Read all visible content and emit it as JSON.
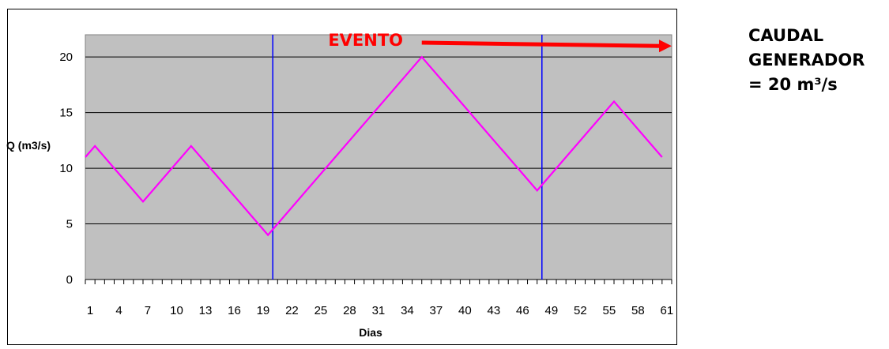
{
  "chart_data": {
    "type": "line",
    "title": "",
    "xlabel": "Dias",
    "ylabel": "Q (m3/s)",
    "xlim": [
      1,
      62
    ],
    "ylim": [
      0,
      22
    ],
    "yticks": [
      0,
      5,
      10,
      15,
      20
    ],
    "xtick_labels": [
      "1",
      "4",
      "7",
      "10",
      "13",
      "16",
      "19",
      "22",
      "25",
      "28",
      "31",
      "34",
      "37",
      "40",
      "43",
      "46",
      "49",
      "52",
      "55",
      "58",
      "61"
    ],
    "plot_background": "#c0c0c0",
    "grid": "horizontal",
    "series": [
      {
        "color": "#ff00ff",
        "x": [
          1,
          2,
          7,
          12,
          20,
          36,
          48,
          56,
          61
        ],
        "y": [
          11,
          12,
          7,
          12,
          4,
          20,
          8,
          16,
          11
        ]
      }
    ],
    "vertical_lines": [
      {
        "x": 20.5,
        "color": "#0000ff"
      },
      {
        "x": 48.5,
        "color": "#0000ff"
      }
    ],
    "annotations": [
      {
        "text": "EVENTO",
        "color": "#ff0000",
        "x": 29.5,
        "y": 23
      }
    ],
    "arrow": {
      "color": "#ff0000",
      "x_start": 36,
      "x_end": 62,
      "y_start": 21.5,
      "y_end": 21.2
    }
  },
  "side_label": {
    "line1": "CAUDAL",
    "line2": "GENERADOR",
    "line3": "= 20 m³/s"
  }
}
